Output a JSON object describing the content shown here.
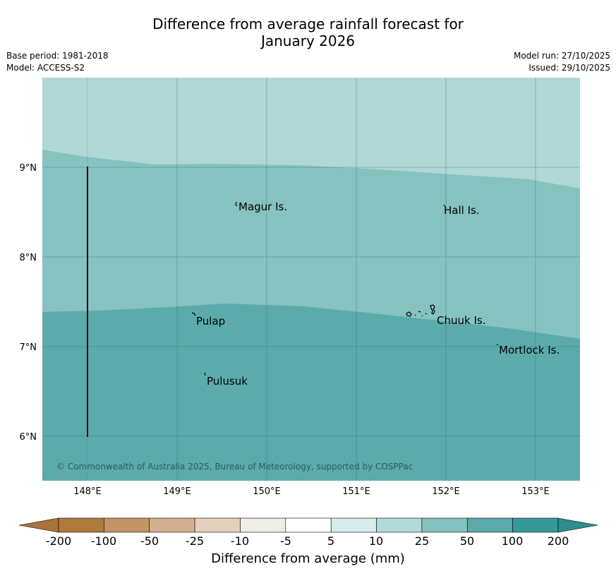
{
  "title": {
    "line1": "Difference from average rainfall forecast for",
    "line2": "January 2026"
  },
  "meta": {
    "base_period": "Base period: 1981-2018",
    "model": "Model: ACCESS-S2",
    "model_run": "Model run: 27/10/2025",
    "issued": "Issued: 29/10/2025"
  },
  "colors": {
    "band_10_25": "#aed7d6",
    "band_25_50": "#85c2c0",
    "band_50_100": "#5babab"
  },
  "axes": {
    "lon_ticks": [
      "148°E",
      "149°E",
      "150°E",
      "151°E",
      "152°E",
      "153°E"
    ],
    "lat_ticks": [
      "9°N",
      "8°N",
      "7°N",
      "6°N"
    ]
  },
  "places": [
    "Magur Is.",
    "Hall Is.",
    "Pulap",
    "Chuuk Is.",
    "Mortlock Is.",
    "Pulusuk"
  ],
  "copyright": "© Commonwealth of Australia 2025, Bureau of Meteorology, supported by COSPPac",
  "colorbar": {
    "labels": [
      "-200",
      "-100",
      "-50",
      "-25",
      "-10",
      "-5",
      "5",
      "10",
      "25",
      "50",
      "100",
      "200"
    ],
    "colors": [
      "#b07a3d",
      "#c29466",
      "#d3b08f",
      "#e4d0bd",
      "#f0ede6",
      "#ffffff",
      "#d8eceb",
      "#b2d8d8",
      "#85c1bf",
      "#5ba9a9",
      "#35999a"
    ],
    "under_color": "#a8733a",
    "over_color": "#2f8e8e",
    "title": "Difference from average (mm)"
  }
}
